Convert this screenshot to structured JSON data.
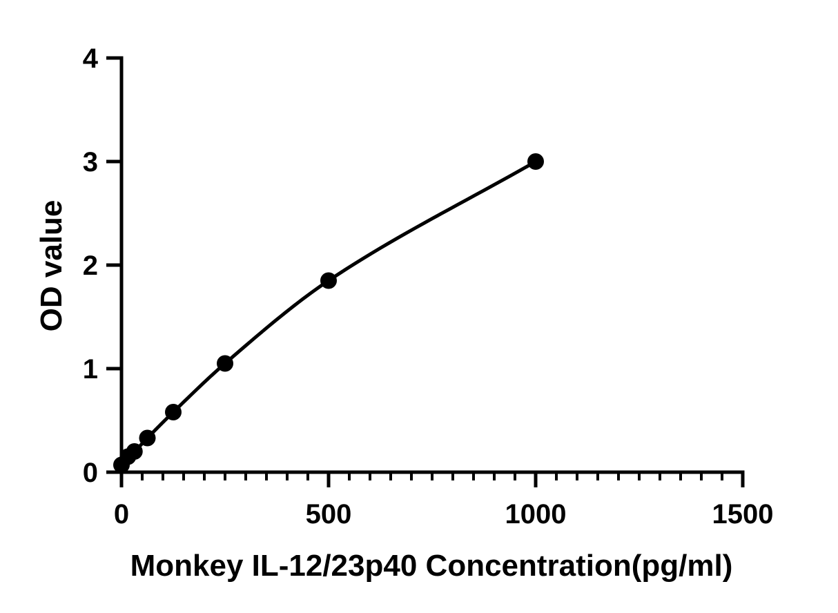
{
  "chart_data": {
    "type": "scatter",
    "xlabel": "Monkey IL-12/23p40 Concentration(pg/ml)",
    "ylabel": "OD value",
    "xlim": [
      0,
      1500
    ],
    "ylim": [
      0,
      4
    ],
    "x_ticks": [
      0,
      500,
      1000,
      1500
    ],
    "y_ticks": [
      0,
      1,
      2,
      3,
      4
    ],
    "x_minor_step": 50,
    "grid": false,
    "legend": "none",
    "fit_line": true,
    "series": [
      {
        "x": [
          0,
          15.6,
          31.25,
          62.5,
          125,
          250,
          500,
          1000
        ],
        "y": [
          0.07,
          0.15,
          0.2,
          0.33,
          0.58,
          1.05,
          1.85,
          3.0
        ]
      }
    ],
    "colors": {
      "marker": "#000000",
      "line": "#000000"
    }
  }
}
